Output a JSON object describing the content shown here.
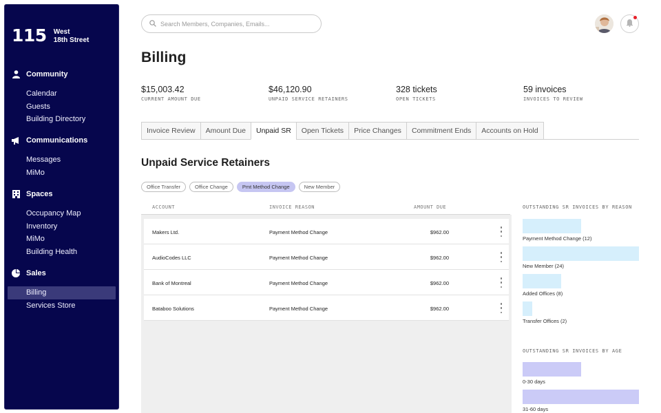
{
  "sidebar": {
    "logo_number": "115",
    "logo_line1": "West",
    "logo_line2": "18th Street",
    "sections": [
      {
        "title": "Community",
        "icon": "person-icon",
        "items": [
          "Calendar",
          "Guests",
          "Building Directory"
        ]
      },
      {
        "title": "Communications",
        "icon": "megaphone-icon",
        "items": [
          "Messages",
          "MiMo"
        ]
      },
      {
        "title": "Spaces",
        "icon": "building-icon",
        "items": [
          "Occupancy Map",
          "Inventory",
          "MiMo",
          "Building Health"
        ]
      },
      {
        "title": "Sales",
        "icon": "pie-chart-icon",
        "items": [
          "Billing",
          "Services Store"
        ]
      }
    ],
    "active_item": "Billing"
  },
  "header": {
    "search_placeholder": "Search Members, Companies, Emails..."
  },
  "page_title": "Billing",
  "stats": [
    {
      "value": "$15,003.42",
      "label": "CURRENT AMOUNT DUE"
    },
    {
      "value": "$46,120.90",
      "label": "UNPAID SERVICE RETAINERS"
    },
    {
      "value": "328 tickets",
      "label": "OPEN TICKETS"
    },
    {
      "value": "59 invoices",
      "label": "INVOICES TO REVIEW"
    }
  ],
  "tabs": [
    "Invoice Review",
    "Amount Due",
    "Unpaid SR",
    "Open Tickets",
    "Price Changes",
    "Commitment Ends",
    "Accounts on Hold"
  ],
  "active_tab": "Unpaid SR",
  "section_title": "Unpaid Service Retainers",
  "filters": [
    "Office Transfer",
    "Office Change",
    "Pmt Method Change",
    "New Member"
  ],
  "active_filter": "Pmt Method Change",
  "table": {
    "headers": [
      "ACCOUNT",
      "INVOICE REASON",
      "AMOUNT DUE"
    ],
    "rows": [
      {
        "account": "Makers Ltd.",
        "reason": "Payment Method Change",
        "amount": "$962.00"
      },
      {
        "account": "AudioCodes LLC",
        "reason": "Payment Method Change",
        "amount": "$962.00"
      },
      {
        "account": "Bank of Montreal",
        "reason": "Payment Method Change",
        "amount": "$962.00"
      },
      {
        "account": "Bataboo Solutions",
        "reason": "Payment Method Change",
        "amount": "$962.00"
      }
    ]
  },
  "charts": {
    "by_reason": {
      "title": "OUTSTANDING SR INVOICES BY REASON",
      "color": "#d6effc",
      "items": [
        {
          "label": "Payment Method Change (12)",
          "value": 12
        },
        {
          "label": "New Member (24)",
          "value": 24
        },
        {
          "label": "Added Offices (8)",
          "value": 8
        },
        {
          "label": "Transfer Offices (2)",
          "value": 2
        }
      ]
    },
    "by_age": {
      "title": "OUTSTANDING SR INVOICES BY AGE",
      "color": "#cbcbf7",
      "items": [
        {
          "label": "0-30 days",
          "value": 12
        },
        {
          "label": "31-60 days",
          "value": 24
        }
      ]
    }
  }
}
